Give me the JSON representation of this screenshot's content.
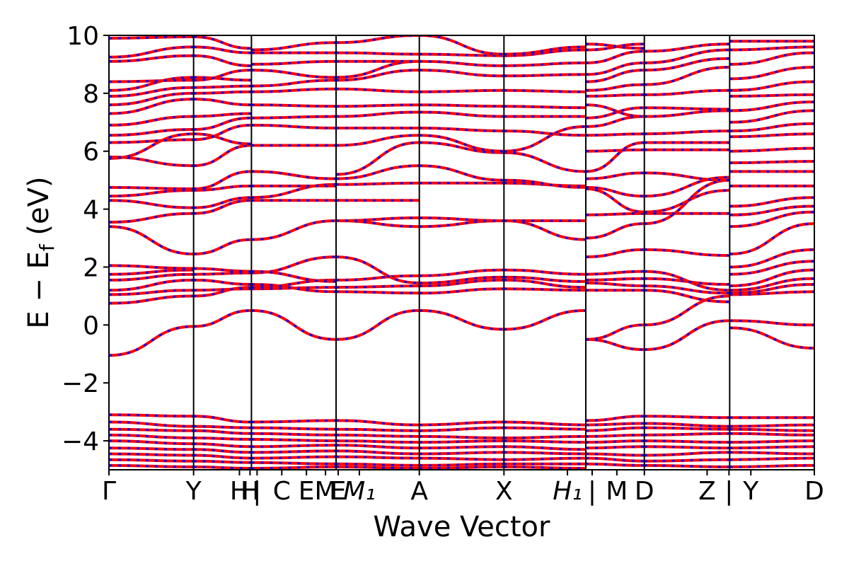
{
  "chart_data": {
    "type": "line",
    "title": "",
    "xlabel": "Wave Vector",
    "ylabel": "E − E",
    "ylabel_sub": "f",
    "ylabel_unit": " (eV)",
    "ylim": [
      -5,
      10
    ],
    "xlim": [
      0,
      1
    ],
    "yticks": [
      {
        "value": 10,
        "label": "10"
      },
      {
        "value": 8,
        "label": "8"
      },
      {
        "value": 6,
        "label": "6"
      },
      {
        "value": 4,
        "label": "4"
      },
      {
        "value": 2,
        "label": "2"
      },
      {
        "value": 0,
        "label": "0"
      },
      {
        "value": -2,
        "label": "−2"
      },
      {
        "value": -4,
        "label": "−4"
      }
    ],
    "kpoint_ticks": [
      {
        "x": 0.0,
        "label": "Γ"
      },
      {
        "x": 0.12,
        "label": "Y"
      },
      {
        "x": 0.185,
        "label": "H"
      },
      {
        "x": 0.2,
        "label": "H"
      },
      {
        "x": 0.21,
        "label": "|"
      },
      {
        "x": 0.245,
        "label": "C"
      },
      {
        "x": 0.28,
        "label": "E"
      },
      {
        "x": 0.307,
        "label": "M"
      },
      {
        "x": 0.325,
        "label": "E"
      },
      {
        "x": 0.355,
        "label": "M₁"
      },
      {
        "x": 0.44,
        "label": "A"
      },
      {
        "x": 0.56,
        "label": "X"
      },
      {
        "x": 0.65,
        "label": "H₁"
      },
      {
        "x": 0.685,
        "label": "|"
      },
      {
        "x": 0.72,
        "label": "M"
      },
      {
        "x": 0.759,
        "label": "D"
      },
      {
        "x": 0.848,
        "label": "Z"
      },
      {
        "x": 0.879,
        "label": "|"
      },
      {
        "x": 0.91,
        "label": "Y"
      },
      {
        "x": 1.0,
        "label": "D"
      }
    ],
    "high_symmetry_lines": [
      0.12,
      0.202,
      0.322,
      0.44,
      0.56,
      0.676,
      0.759,
      0.88
    ],
    "segments": [
      {
        "x0": 0.0,
        "x1": 0.12,
        "bands": [
          [
            -1.05,
            -0.05
          ],
          [
            0.75,
            1.0
          ],
          [
            1.05,
            1.2
          ],
          [
            1.2,
            1.55
          ],
          [
            1.55,
            1.75
          ],
          [
            1.75,
            1.9
          ],
          [
            2.05,
            1.95
          ],
          [
            3.4,
            2.45
          ],
          [
            3.55,
            3.85
          ],
          [
            4.3,
            4.05
          ],
          [
            4.45,
            4.65
          ],
          [
            4.75,
            4.7
          ],
          [
            5.75,
            6.6
          ],
          [
            5.8,
            5.5
          ],
          [
            6.3,
            6.4
          ],
          [
            6.55,
            6.75
          ],
          [
            6.9,
            7.2
          ],
          [
            7.3,
            7.8
          ],
          [
            7.6,
            8.0
          ],
          [
            7.9,
            8.2
          ],
          [
            8.1,
            8.55
          ],
          [
            8.4,
            8.45
          ],
          [
            9.1,
            9.3
          ],
          [
            9.25,
            9.6
          ],
          [
            9.9,
            9.95
          ],
          [
            -3.1,
            -3.15
          ],
          [
            -3.35,
            -3.5
          ],
          [
            -3.6,
            -3.65
          ],
          [
            -3.8,
            -3.9
          ],
          [
            -4.0,
            -4.1
          ],
          [
            -4.25,
            -4.3
          ],
          [
            -4.45,
            -4.5
          ],
          [
            -4.65,
            -4.7
          ],
          [
            -4.85,
            -4.9
          ]
        ]
      },
      {
        "x0": 0.12,
        "x1": 0.202,
        "bands": [
          [
            -0.05,
            0.5
          ],
          [
            1.0,
            1.3
          ],
          [
            1.2,
            1.25
          ],
          [
            1.55,
            1.4
          ],
          [
            1.75,
            1.8
          ],
          [
            1.95,
            1.85
          ],
          [
            2.45,
            2.95
          ],
          [
            3.85,
            4.3
          ],
          [
            4.05,
            4.4
          ],
          [
            4.65,
            4.8
          ],
          [
            4.7,
            5.3
          ],
          [
            5.5,
            6.2
          ],
          [
            6.6,
            6.25
          ],
          [
            6.4,
            6.9
          ],
          [
            6.75,
            7.15
          ],
          [
            7.2,
            7.3
          ],
          [
            7.8,
            7.6
          ],
          [
            8.0,
            8.05
          ],
          [
            8.2,
            8.25
          ],
          [
            8.55,
            8.45
          ],
          [
            8.45,
            8.8
          ],
          [
            9.3,
            8.95
          ],
          [
            9.6,
            9.4
          ],
          [
            9.95,
            9.55
          ],
          [
            -3.15,
            -3.35
          ],
          [
            -3.5,
            -3.55
          ],
          [
            -3.65,
            -3.75
          ],
          [
            -3.9,
            -3.95
          ],
          [
            -4.1,
            -4.2
          ],
          [
            -4.3,
            -4.4
          ],
          [
            -4.5,
            -4.6
          ],
          [
            -4.7,
            -4.75
          ],
          [
            -4.9,
            -4.95
          ]
        ]
      },
      {
        "x0": 0.202,
        "x1": 0.322,
        "bands": [
          [
            0.5,
            -0.5
          ],
          [
            1.25,
            1.3
          ],
          [
            1.3,
            1.55
          ],
          [
            1.4,
            1.15
          ],
          [
            1.8,
            2.35
          ],
          [
            1.85,
            1.5
          ],
          [
            2.95,
            3.6
          ],
          [
            4.3,
            4.3
          ],
          [
            4.4,
            4.85
          ],
          [
            4.8,
            4.8
          ],
          [
            5.3,
            5.05
          ],
          [
            6.2,
            6.2
          ],
          [
            6.9,
            6.8
          ],
          [
            7.15,
            7.2
          ],
          [
            7.6,
            7.55
          ],
          [
            8.05,
            8.15
          ],
          [
            8.25,
            8.45
          ],
          [
            8.8,
            8.55
          ],
          [
            9.0,
            9.1
          ],
          [
            9.4,
            9.4
          ],
          [
            9.5,
            9.75
          ],
          [
            -3.35,
            -3.3
          ],
          [
            -3.55,
            -3.6
          ],
          [
            -3.75,
            -3.8
          ],
          [
            -3.95,
            -4.0
          ],
          [
            -4.2,
            -4.15
          ],
          [
            -4.4,
            -4.35
          ],
          [
            -4.6,
            -4.55
          ],
          [
            -4.75,
            -4.8
          ],
          [
            -4.95,
            -4.9
          ]
        ]
      },
      {
        "x0": 0.322,
        "x1": 0.44,
        "bands": [
          [
            -0.5,
            0.5
          ],
          [
            1.15,
            1.1
          ],
          [
            1.3,
            1.35
          ],
          [
            1.55,
            1.7
          ],
          [
            2.35,
            1.45
          ],
          [
            3.6,
            3.4
          ],
          [
            3.6,
            3.7
          ],
          [
            4.3,
            4.3
          ],
          [
            4.85,
            4.9
          ],
          [
            5.05,
            5.5
          ],
          [
            5.2,
            6.3
          ],
          [
            6.2,
            6.55
          ],
          [
            6.8,
            6.8
          ],
          [
            7.2,
            7.35
          ],
          [
            7.55,
            7.6
          ],
          [
            8.15,
            8.05
          ],
          [
            8.45,
            8.8
          ],
          [
            8.55,
            9.1
          ],
          [
            9.1,
            9.1
          ],
          [
            9.4,
            9.35
          ],
          [
            9.75,
            10.0
          ],
          [
            -3.3,
            -3.45
          ],
          [
            -3.6,
            -3.65
          ],
          [
            -3.8,
            -3.85
          ],
          [
            -4.0,
            -4.05
          ],
          [
            -4.15,
            -4.25
          ],
          [
            -4.35,
            -4.45
          ],
          [
            -4.55,
            -4.6
          ],
          [
            -4.8,
            -4.85
          ],
          [
            -4.9,
            -4.95
          ]
        ]
      },
      {
        "x0": 0.44,
        "x1": 0.56,
        "bands": [
          [
            0.5,
            -0.15
          ],
          [
            1.1,
            1.25
          ],
          [
            1.35,
            1.55
          ],
          [
            1.7,
            1.9
          ],
          [
            1.45,
            1.65
          ],
          [
            3.4,
            3.6
          ],
          [
            3.7,
            3.6
          ],
          [
            4.9,
            4.9
          ],
          [
            5.5,
            5.0
          ],
          [
            6.3,
            5.95
          ],
          [
            6.55,
            6.0
          ],
          [
            6.8,
            6.7
          ],
          [
            7.35,
            7.2
          ],
          [
            7.6,
            7.55
          ],
          [
            8.05,
            8.1
          ],
          [
            8.8,
            8.6
          ],
          [
            9.1,
            8.95
          ],
          [
            9.35,
            9.3
          ],
          [
            10.0,
            9.35
          ],
          [
            -3.45,
            -3.35
          ],
          [
            -3.65,
            -3.55
          ],
          [
            -3.85,
            -3.9
          ],
          [
            -4.05,
            -4.0
          ],
          [
            -4.25,
            -4.2
          ],
          [
            -4.45,
            -4.4
          ],
          [
            -4.6,
            -4.65
          ],
          [
            -4.85,
            -4.8
          ],
          [
            -4.95,
            -4.9
          ]
        ]
      },
      {
        "x0": 0.56,
        "x1": 0.676,
        "bands": [
          [
            -0.15,
            0.5
          ],
          [
            1.25,
            1.2
          ],
          [
            1.55,
            1.3
          ],
          [
            1.9,
            1.75
          ],
          [
            1.65,
            1.5
          ],
          [
            3.6,
            2.95
          ],
          [
            3.6,
            3.6
          ],
          [
            4.9,
            4.8
          ],
          [
            5.0,
            4.75
          ],
          [
            5.95,
            5.3
          ],
          [
            6.0,
            6.85
          ],
          [
            6.7,
            6.55
          ],
          [
            7.2,
            7.2
          ],
          [
            7.55,
            7.5
          ],
          [
            8.1,
            8.05
          ],
          [
            8.6,
            8.65
          ],
          [
            8.95,
            9.05
          ],
          [
            9.3,
            9.5
          ],
          [
            9.35,
            9.6
          ],
          [
            -3.35,
            -3.45
          ],
          [
            -3.55,
            -3.6
          ],
          [
            -3.9,
            -3.85
          ],
          [
            -4.0,
            -4.05
          ],
          [
            -4.2,
            -4.3
          ],
          [
            -4.4,
            -4.45
          ],
          [
            -4.65,
            -4.6
          ],
          [
            -4.8,
            -4.8
          ],
          [
            -4.9,
            -4.95
          ]
        ]
      },
      {
        "x0": 0.676,
        "x1": 0.759,
        "bands": [
          [
            -0.5,
            -0.85
          ],
          [
            -0.5,
            0.0
          ],
          [
            1.2,
            1.2
          ],
          [
            1.45,
            1.35
          ],
          [
            1.55,
            1.6
          ],
          [
            1.75,
            1.85
          ],
          [
            2.35,
            2.6
          ],
          [
            3.0,
            3.5
          ],
          [
            3.8,
            3.85
          ],
          [
            4.7,
            3.9
          ],
          [
            4.75,
            4.45
          ],
          [
            5.05,
            5.25
          ],
          [
            5.3,
            6.3
          ],
          [
            6.0,
            6.05
          ],
          [
            6.55,
            6.6
          ],
          [
            6.85,
            7.2
          ],
          [
            7.15,
            7.5
          ],
          [
            7.6,
            7.2
          ],
          [
            7.9,
            7.95
          ],
          [
            8.1,
            8.3
          ],
          [
            8.4,
            8.8
          ],
          [
            8.65,
            9.05
          ],
          [
            9.05,
            9.45
          ],
          [
            9.5,
            9.7
          ],
          [
            9.7,
            9.55
          ],
          [
            -3.3,
            -3.15
          ],
          [
            -3.45,
            -3.4
          ],
          [
            -3.65,
            -3.55
          ],
          [
            -3.85,
            -3.8
          ],
          [
            -4.05,
            -4.0
          ],
          [
            -4.25,
            -4.2
          ],
          [
            -4.45,
            -4.5
          ],
          [
            -4.6,
            -4.7
          ],
          [
            -4.8,
            -4.85
          ]
        ]
      },
      {
        "x0": 0.759,
        "x1": 0.88,
        "bands": [
          [
            -0.85,
            0.15
          ],
          [
            0.0,
            1.0
          ],
          [
            1.2,
            0.8
          ],
          [
            1.35,
            1.1
          ],
          [
            1.6,
            1.4
          ],
          [
            1.85,
            1.2
          ],
          [
            2.6,
            2.4
          ],
          [
            3.5,
            5.0
          ],
          [
            3.85,
            3.85
          ],
          [
            3.9,
            4.65
          ],
          [
            4.45,
            5.1
          ],
          [
            5.25,
            5.0
          ],
          [
            6.05,
            6.05
          ],
          [
            6.3,
            6.3
          ],
          [
            6.6,
            6.7
          ],
          [
            7.2,
            7.4
          ],
          [
            7.5,
            7.45
          ],
          [
            7.95,
            8.1
          ],
          [
            8.3,
            8.9
          ],
          [
            8.8,
            9.2
          ],
          [
            9.05,
            9.5
          ],
          [
            9.45,
            9.7
          ],
          [
            -3.15,
            -3.2
          ],
          [
            -3.4,
            -3.5
          ],
          [
            -3.55,
            -3.6
          ],
          [
            -3.8,
            -3.75
          ],
          [
            -4.0,
            -4.05
          ],
          [
            -4.2,
            -4.25
          ],
          [
            -4.5,
            -4.4
          ],
          [
            -4.7,
            -4.65
          ],
          [
            -4.85,
            -4.9
          ]
        ]
      },
      {
        "x0": 0.88,
        "x1": 1.0,
        "bands": [
          [
            -0.1,
            -0.8
          ],
          [
            0.15,
            0.0
          ],
          [
            1.05,
            1.15
          ],
          [
            1.1,
            1.4
          ],
          [
            1.2,
            1.6
          ],
          [
            1.35,
            1.9
          ],
          [
            1.75,
            2.2
          ],
          [
            2.0,
            2.6
          ],
          [
            2.45,
            3.5
          ],
          [
            3.4,
            3.9
          ],
          [
            3.8,
            4.1
          ],
          [
            4.1,
            4.4
          ],
          [
            4.8,
            4.8
          ],
          [
            5.3,
            5.3
          ],
          [
            5.6,
            5.65
          ],
          [
            6.0,
            6.1
          ],
          [
            6.5,
            6.6
          ],
          [
            6.7,
            6.95
          ],
          [
            7.0,
            7.4
          ],
          [
            7.4,
            7.7
          ],
          [
            7.9,
            7.95
          ],
          [
            8.1,
            8.4
          ],
          [
            8.5,
            8.9
          ],
          [
            9.0,
            9.4
          ],
          [
            9.5,
            9.6
          ],
          [
            9.8,
            9.8
          ],
          [
            -3.2,
            -3.2
          ],
          [
            -3.5,
            -3.45
          ],
          [
            -3.6,
            -3.65
          ],
          [
            -3.75,
            -3.8
          ],
          [
            -4.05,
            -4.0
          ],
          [
            -4.25,
            -4.2
          ],
          [
            -4.4,
            -4.45
          ],
          [
            -4.65,
            -4.6
          ],
          [
            -4.9,
            -4.85
          ]
        ]
      }
    ],
    "series": [
      {
        "color": "#ff0000",
        "style": "solid"
      },
      {
        "color": "#0000ff",
        "style": "dotted"
      }
    ],
    "grid": false
  }
}
